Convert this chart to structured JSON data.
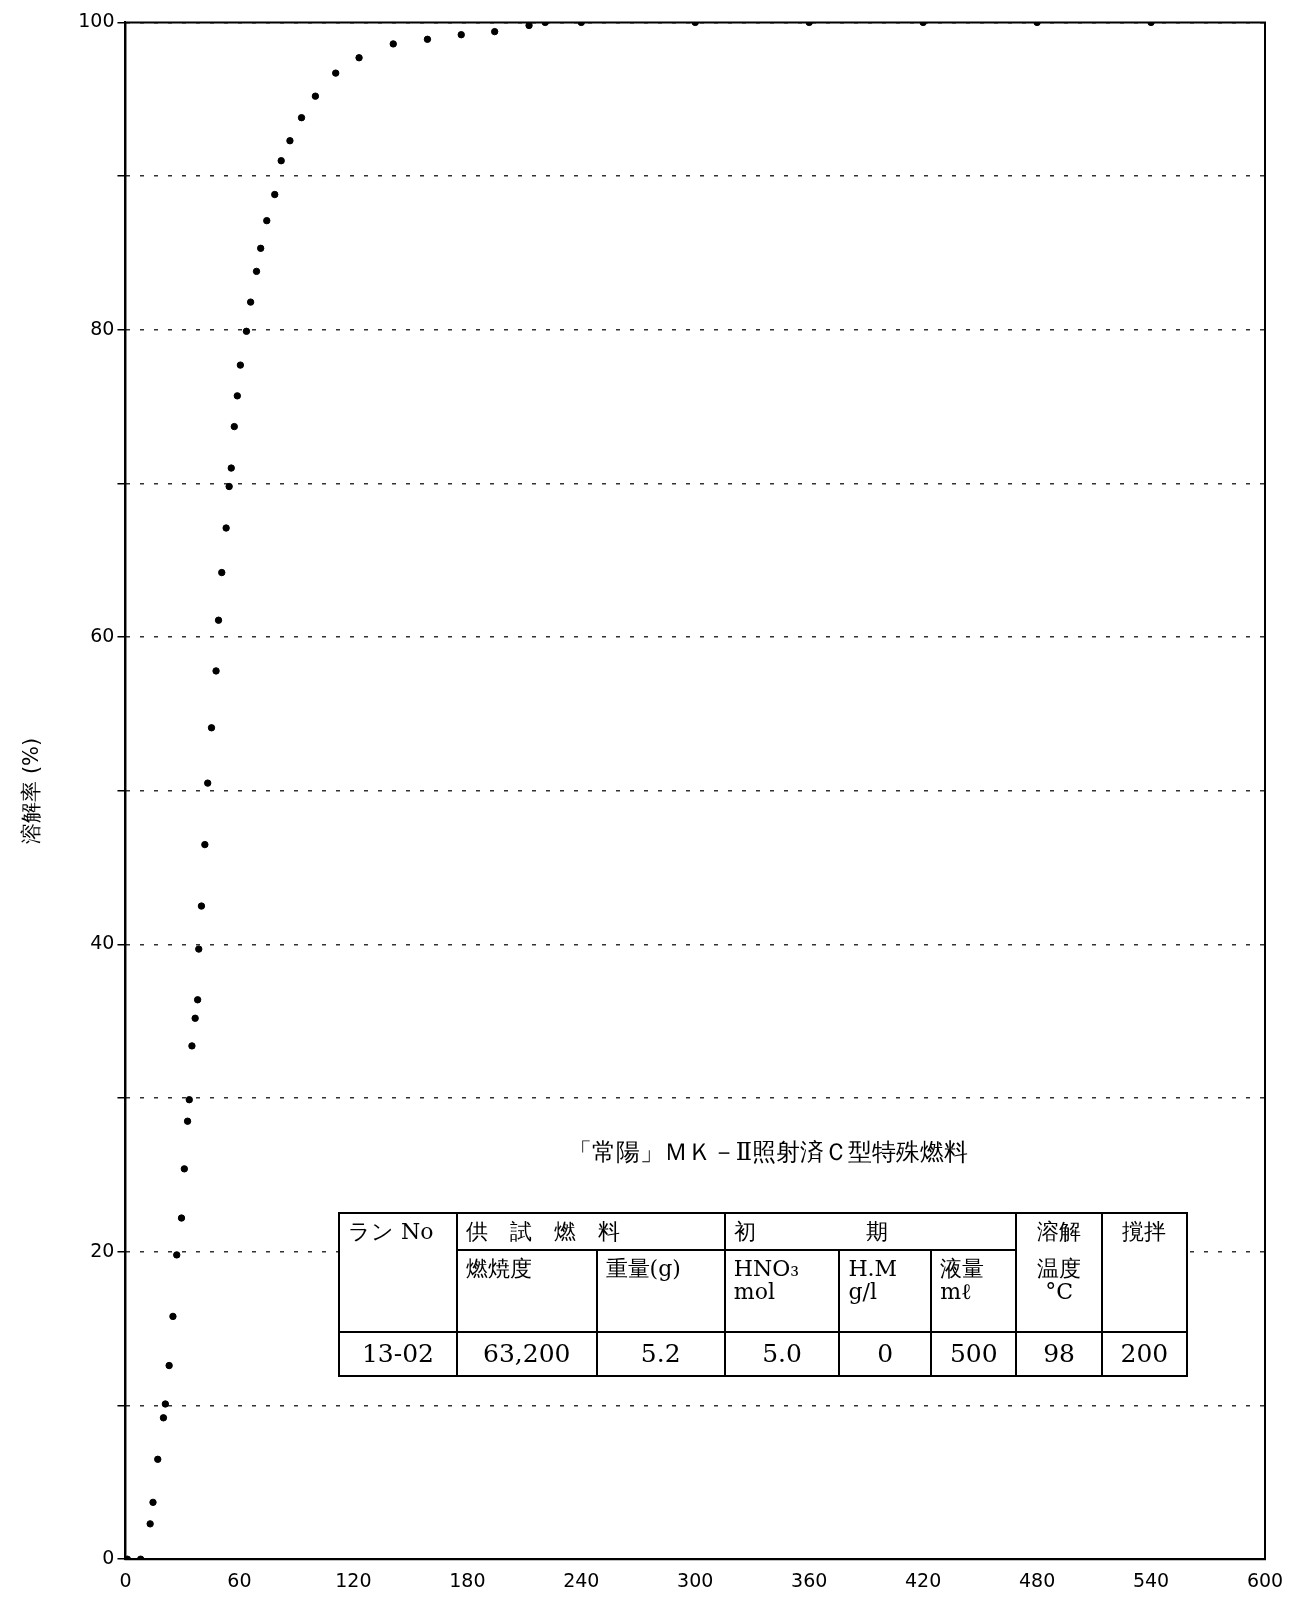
{
  "chart_data": {
    "type": "scatter",
    "ylabel": "溶解率 (%)",
    "x": [
      1,
      8,
      13,
      14.5,
      17,
      20,
      21,
      23,
      25,
      27,
      29.5,
      31,
      32.7,
      33.6,
      35,
      36.7,
      38,
      38.6,
      40,
      41.8,
      43.3,
      45.3,
      47.7,
      49,
      50.7,
      53,
      54.6,
      55.7,
      57.3,
      58.9,
      60.5,
      63.7,
      65.9,
      69,
      71.2,
      74.4,
      78.6,
      82,
      86.6,
      92.7,
      100,
      110.7,
      123,
      141,
      159,
      176.8,
      194.4,
      212.5,
      221,
      240,
      300,
      360,
      420,
      480,
      540
    ],
    "values": [
      0,
      0,
      2.3,
      3.7,
      6.5,
      9.2,
      10.1,
      12.6,
      15.8,
      19.8,
      22.2,
      25.4,
      28.5,
      29.9,
      33.4,
      35.2,
      36.4,
      39.7,
      42.5,
      46.5,
      50.5,
      54.1,
      57.8,
      61.1,
      64.2,
      67.1,
      69.8,
      71,
      73.7,
      75.7,
      77.7,
      79.9,
      81.8,
      83.8,
      85.3,
      87.1,
      88.8,
      91,
      92.3,
      93.8,
      95.2,
      96.7,
      97.7,
      98.6,
      98.9,
      99.2,
      99.4,
      99.8,
      100,
      100,
      100,
      100,
      100,
      100,
      100
    ],
    "color": "#000000",
    "marker": "circle",
    "xlim": [
      0,
      600
    ],
    "xticks": [
      0,
      60,
      120,
      180,
      240,
      300,
      360,
      420,
      480,
      540,
      600
    ],
    "ylim": [
      0,
      100
    ],
    "yticks": [
      0,
      {
        "value": 10,
        "label": null
      },
      20,
      {
        "value": 30,
        "label": null
      },
      40,
      {
        "value": 50,
        "label": null
      },
      60,
      {
        "value": 70,
        "label": null
      },
      80,
      {
        "value": 90,
        "label": null
      },
      100
    ],
    "grid": "y",
    "legend": false,
    "annotations": [
      "「常陽」ＭＫ－Ⅱ照射済Ｃ型特殊燃料",
      "ラン No",
      "供　試　燃　料",
      "初　　　　　期",
      "溶解",
      "温度",
      "°C",
      "撹拌",
      "燃焼度",
      "重量(g)",
      "HNO₃\nmol",
      "H.M\ng/l",
      "液量\nmℓ",
      "13-02",
      "63,200",
      "5.2",
      "5.0",
      "0",
      "500",
      "98",
      "200"
    ]
  }
}
